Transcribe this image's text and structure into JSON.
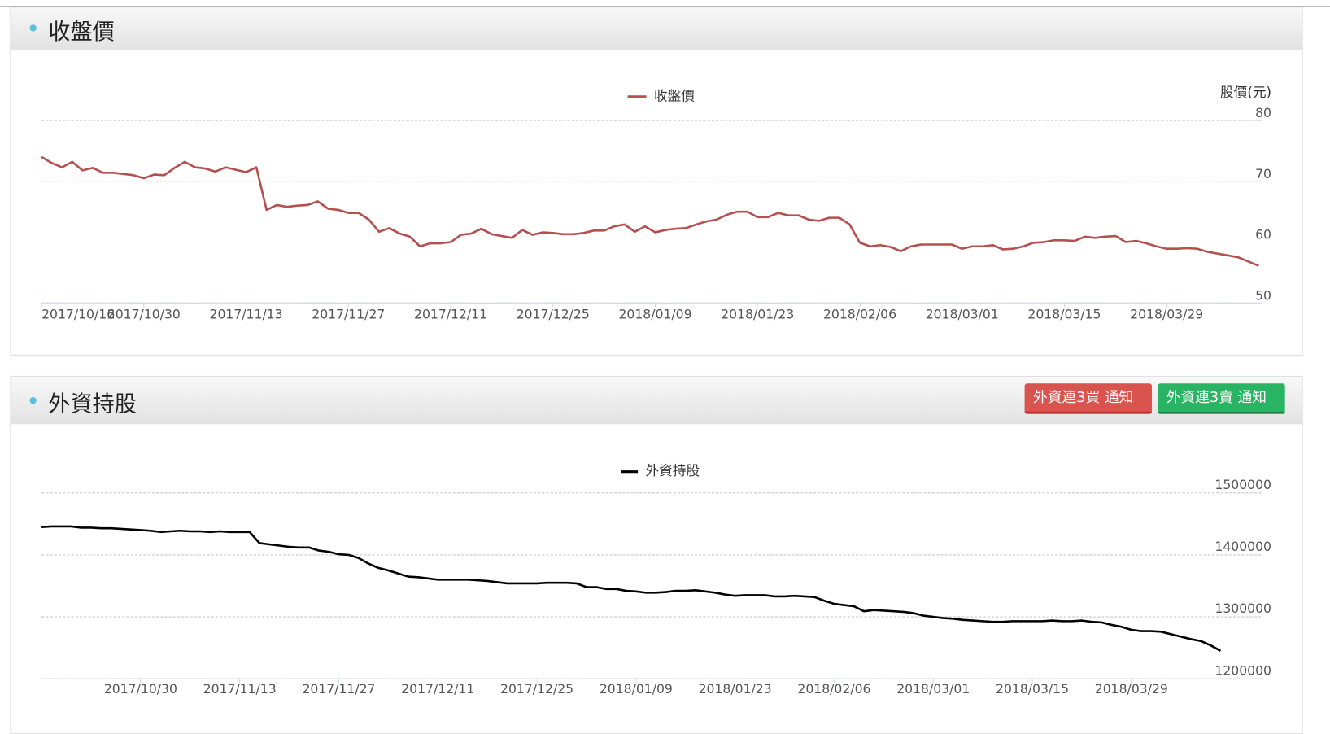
{
  "panels": [
    {
      "title": "收盤價"
    },
    {
      "title": "外資持股",
      "buttons": [
        "外資連3買 通知",
        "外資連3賣 通知"
      ]
    }
  ],
  "chart_data": [
    {
      "type": "line",
      "y_axis_title": "股價(元)",
      "legend": "top-center",
      "categories": [
        "2017/10/16",
        null,
        null,
        null,
        null,
        null,
        null,
        null,
        null,
        null,
        "2017/10/30",
        null,
        null,
        null,
        null,
        null,
        null,
        null,
        null,
        null,
        "2017/11/13",
        null,
        null,
        null,
        null,
        null,
        null,
        null,
        null,
        null,
        "2017/11/27",
        null,
        null,
        null,
        null,
        null,
        null,
        null,
        null,
        null,
        "2017/12/11",
        null,
        null,
        null,
        null,
        null,
        null,
        null,
        null,
        null,
        "2017/12/25",
        null,
        null,
        null,
        null,
        null,
        null,
        null,
        null,
        null,
        "2018/01/09",
        null,
        null,
        null,
        null,
        null,
        null,
        null,
        null,
        null,
        "2018/01/23",
        null,
        null,
        null,
        null,
        null,
        null,
        null,
        null,
        null,
        "2018/02/06",
        null,
        null,
        null,
        null,
        null,
        null,
        null,
        null,
        null,
        "2018/03/01",
        null,
        null,
        null,
        null,
        null,
        null,
        null,
        null,
        null,
        "2018/03/15",
        null,
        null,
        null,
        null,
        null,
        null,
        null,
        null,
        null,
        "2018/03/29",
        null,
        null,
        null,
        null,
        null,
        null,
        null,
        null,
        null
      ],
      "series": [
        {
          "name": "收盤價",
          "color": "#b5504f",
          "values": [
            74.0,
            73.0,
            72.3,
            73.2,
            71.8,
            72.2,
            71.4,
            71.4,
            71.2,
            71.0,
            70.5,
            71.1,
            71.0,
            72.2,
            73.2,
            72.3,
            72.1,
            71.6,
            72.3,
            71.9,
            71.5,
            72.3,
            65.3,
            66.1,
            65.8,
            66.0,
            66.1,
            66.7,
            65.5,
            65.3,
            64.8,
            64.8,
            63.7,
            61.7,
            62.3,
            61.4,
            60.9,
            59.3,
            59.8,
            59.8,
            60.0,
            61.2,
            61.4,
            62.2,
            61.3,
            61.0,
            60.7,
            62.0,
            61.2,
            61.6,
            61.5,
            61.3,
            61.3,
            61.5,
            61.9,
            61.9,
            62.6,
            62.9,
            61.7,
            62.6,
            61.6,
            62.0,
            62.2,
            62.3,
            62.9,
            63.4,
            63.7,
            64.5,
            65.0,
            65.0,
            64.1,
            64.1,
            64.8,
            64.4,
            64.4,
            63.7,
            63.5,
            64.0,
            64.0,
            62.9,
            59.9,
            59.3,
            59.5,
            59.2,
            58.5,
            59.3,
            59.6,
            59.6,
            59.6,
            59.6,
            58.9,
            59.3,
            59.3,
            59.5,
            58.8,
            58.9,
            59.3,
            59.9,
            60.0,
            60.3,
            60.3,
            60.2,
            60.9,
            60.7,
            60.9,
            61.0,
            60.0,
            60.2,
            59.8,
            59.3,
            58.9,
            58.9,
            59.0,
            58.9,
            58.4,
            58.1,
            57.8,
            57.5,
            56.8,
            56.1
          ]
        }
      ],
      "ylim": [
        50,
        80
      ],
      "yticks": [
        50,
        60,
        70,
        80
      ],
      "grid": true
    },
    {
      "type": "line",
      "legend": "top-center",
      "categories": [
        null,
        null,
        null,
        null,
        null,
        null,
        null,
        null,
        null,
        null,
        "2017/10/30",
        null,
        null,
        null,
        null,
        null,
        null,
        null,
        null,
        null,
        "2017/11/13",
        null,
        null,
        null,
        null,
        null,
        null,
        null,
        null,
        null,
        "2017/11/27",
        null,
        null,
        null,
        null,
        null,
        null,
        null,
        null,
        null,
        "2017/12/11",
        null,
        null,
        null,
        null,
        null,
        null,
        null,
        null,
        null,
        "2017/12/25",
        null,
        null,
        null,
        null,
        null,
        null,
        null,
        null,
        null,
        "2018/01/09",
        null,
        null,
        null,
        null,
        null,
        null,
        null,
        null,
        null,
        "2018/01/23",
        null,
        null,
        null,
        null,
        null,
        null,
        null,
        null,
        null,
        "2018/02/06",
        null,
        null,
        null,
        null,
        null,
        null,
        null,
        null,
        null,
        "2018/03/01",
        null,
        null,
        null,
        null,
        null,
        null,
        null,
        null,
        null,
        "2018/03/15",
        null,
        null,
        null,
        null,
        null,
        null,
        null,
        null,
        null,
        "2018/03/29",
        null,
        null,
        null,
        null,
        null,
        null,
        null,
        null,
        null
      ],
      "series": [
        {
          "name": "外資持股",
          "color": "#000000",
          "values": [
            1445000,
            1446000,
            1446000,
            1446000,
            1444000,
            1444000,
            1443000,
            1443000,
            1442000,
            1441000,
            1440000,
            1439000,
            1437000,
            1438000,
            1439000,
            1438000,
            1438000,
            1437000,
            1438000,
            1437000,
            1437000,
            1437000,
            1419000,
            1417000,
            1415000,
            1413000,
            1412000,
            1412000,
            1407000,
            1405000,
            1401000,
            1400000,
            1395000,
            1386000,
            1379000,
            1375000,
            1370000,
            1365000,
            1364000,
            1362000,
            1360000,
            1360000,
            1360000,
            1360000,
            1359000,
            1358000,
            1356000,
            1354000,
            1354000,
            1354000,
            1354000,
            1355000,
            1355000,
            1355000,
            1354000,
            1348000,
            1348000,
            1345000,
            1345000,
            1342000,
            1341000,
            1339000,
            1339000,
            1340000,
            1342000,
            1342000,
            1343000,
            1341000,
            1339000,
            1336000,
            1334000,
            1335000,
            1335000,
            1335000,
            1333000,
            1333000,
            1334000,
            1333000,
            1332000,
            1326000,
            1321000,
            1319000,
            1317000,
            1309000,
            1311000,
            1310000,
            1309000,
            1308000,
            1306000,
            1302000,
            1300000,
            1298000,
            1297000,
            1295000,
            1294000,
            1293000,
            1292000,
            1292000,
            1293000,
            1293000,
            1293000,
            1293000,
            1294000,
            1293000,
            1293000,
            1294000,
            1292000,
            1291000,
            1287000,
            1284000,
            1279000,
            1277000,
            1277000,
            1276000,
            1272000,
            1268000,
            1264000,
            1261000,
            1254000,
            1245000
          ]
        }
      ],
      "ylim": [
        1200000,
        1500000
      ],
      "yticks": [
        1200000,
        1300000,
        1400000,
        1500000
      ],
      "grid": true
    }
  ]
}
